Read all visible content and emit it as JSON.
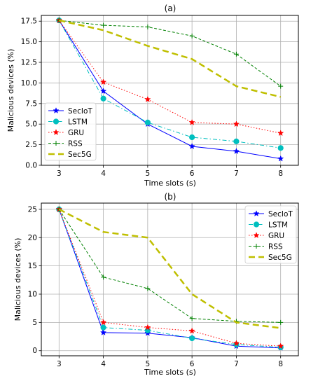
{
  "chart_data": [
    {
      "type": "line",
      "title": "(a)",
      "xlabel": "Time slots (s)",
      "ylabel": "Malicious devices (%)",
      "x": [
        3,
        4,
        5,
        6,
        7,
        8
      ],
      "xticks": [
        "3",
        "4",
        "5",
        "6",
        "7",
        "8"
      ],
      "xlim": [
        2.6,
        8.4
      ],
      "ylim": [
        0,
        18.2
      ],
      "yticks": [
        "0.0",
        "2.5",
        "5.0",
        "7.5",
        "10.0",
        "12.5",
        "15.0",
        "17.5"
      ],
      "ytick_values": [
        0,
        2.5,
        5,
        7.5,
        10,
        12.5,
        15,
        17.5
      ],
      "grid": true,
      "legend_position": "lower-left",
      "series": [
        {
          "name": "SecIoT",
          "values": [
            17.6,
            9.0,
            5.0,
            2.3,
            1.7,
            0.8
          ],
          "color": "#0000ff",
          "dash": "solid",
          "marker": "star",
          "width": 1
        },
        {
          "name": "LSTM",
          "values": [
            17.6,
            8.1,
            5.2,
            3.4,
            2.9,
            2.1
          ],
          "color": "#00bfbf",
          "dash": "dashdot",
          "marker": "circle",
          "width": 1
        },
        {
          "name": "GRU",
          "values": [
            17.6,
            10.1,
            8.0,
            5.2,
            5.0,
            3.9
          ],
          "color": "#ff0000",
          "dash": "dotted",
          "marker": "star",
          "width": 1
        },
        {
          "name": "RSS",
          "values": [
            17.6,
            17.0,
            16.8,
            15.7,
            13.5,
            9.6
          ],
          "color": "#008000",
          "dash": "dashed",
          "marker": "plus",
          "width": 1
        },
        {
          "name": "Sec5G",
          "values": [
            17.6,
            16.4,
            14.5,
            12.9,
            9.6,
            8.3
          ],
          "color": "#bfbf00",
          "dash": "longdash",
          "marker": "none",
          "width": 2.5
        }
      ]
    },
    {
      "type": "line",
      "title": "(b)",
      "xlabel": "Time slots (s)",
      "ylabel": "Malicious devices (%)",
      "x": [
        3,
        4,
        5,
        6,
        7,
        8
      ],
      "xticks": [
        "3",
        "4",
        "5",
        "6",
        "7",
        "8"
      ],
      "xlim": [
        2.6,
        8.4
      ],
      "ylim": [
        -0.9,
        26.1
      ],
      "yticks": [
        "0",
        "5",
        "10",
        "15",
        "20",
        "25"
      ],
      "ytick_values": [
        0,
        5,
        10,
        15,
        20,
        25
      ],
      "grid": true,
      "legend_position": "upper-right",
      "series": [
        {
          "name": "SecIoT",
          "values": [
            25.0,
            3.2,
            3.1,
            2.3,
            0.8,
            0.5
          ],
          "color": "#0000ff",
          "dash": "solid",
          "marker": "star",
          "width": 1
        },
        {
          "name": "LSTM",
          "values": [
            25.0,
            4.1,
            3.6,
            2.2,
            1.1,
            0.6
          ],
          "color": "#00bfbf",
          "dash": "dashdot",
          "marker": "circle",
          "width": 1
        },
        {
          "name": "GRU",
          "values": [
            25.0,
            5.0,
            4.1,
            3.5,
            1.3,
            0.8
          ],
          "color": "#ff0000",
          "dash": "dotted",
          "marker": "star",
          "width": 1
        },
        {
          "name": "RSS",
          "values": [
            25.0,
            13.0,
            11.0,
            5.7,
            5.2,
            5.0
          ],
          "color": "#008000",
          "dash": "dashed",
          "marker": "plus",
          "width": 1
        },
        {
          "name": "Sec5G",
          "values": [
            25.0,
            21.0,
            20.0,
            10.0,
            5.0,
            4.0
          ],
          "color": "#bfbf00",
          "dash": "longdash",
          "marker": "none",
          "width": 2.5
        }
      ]
    }
  ]
}
